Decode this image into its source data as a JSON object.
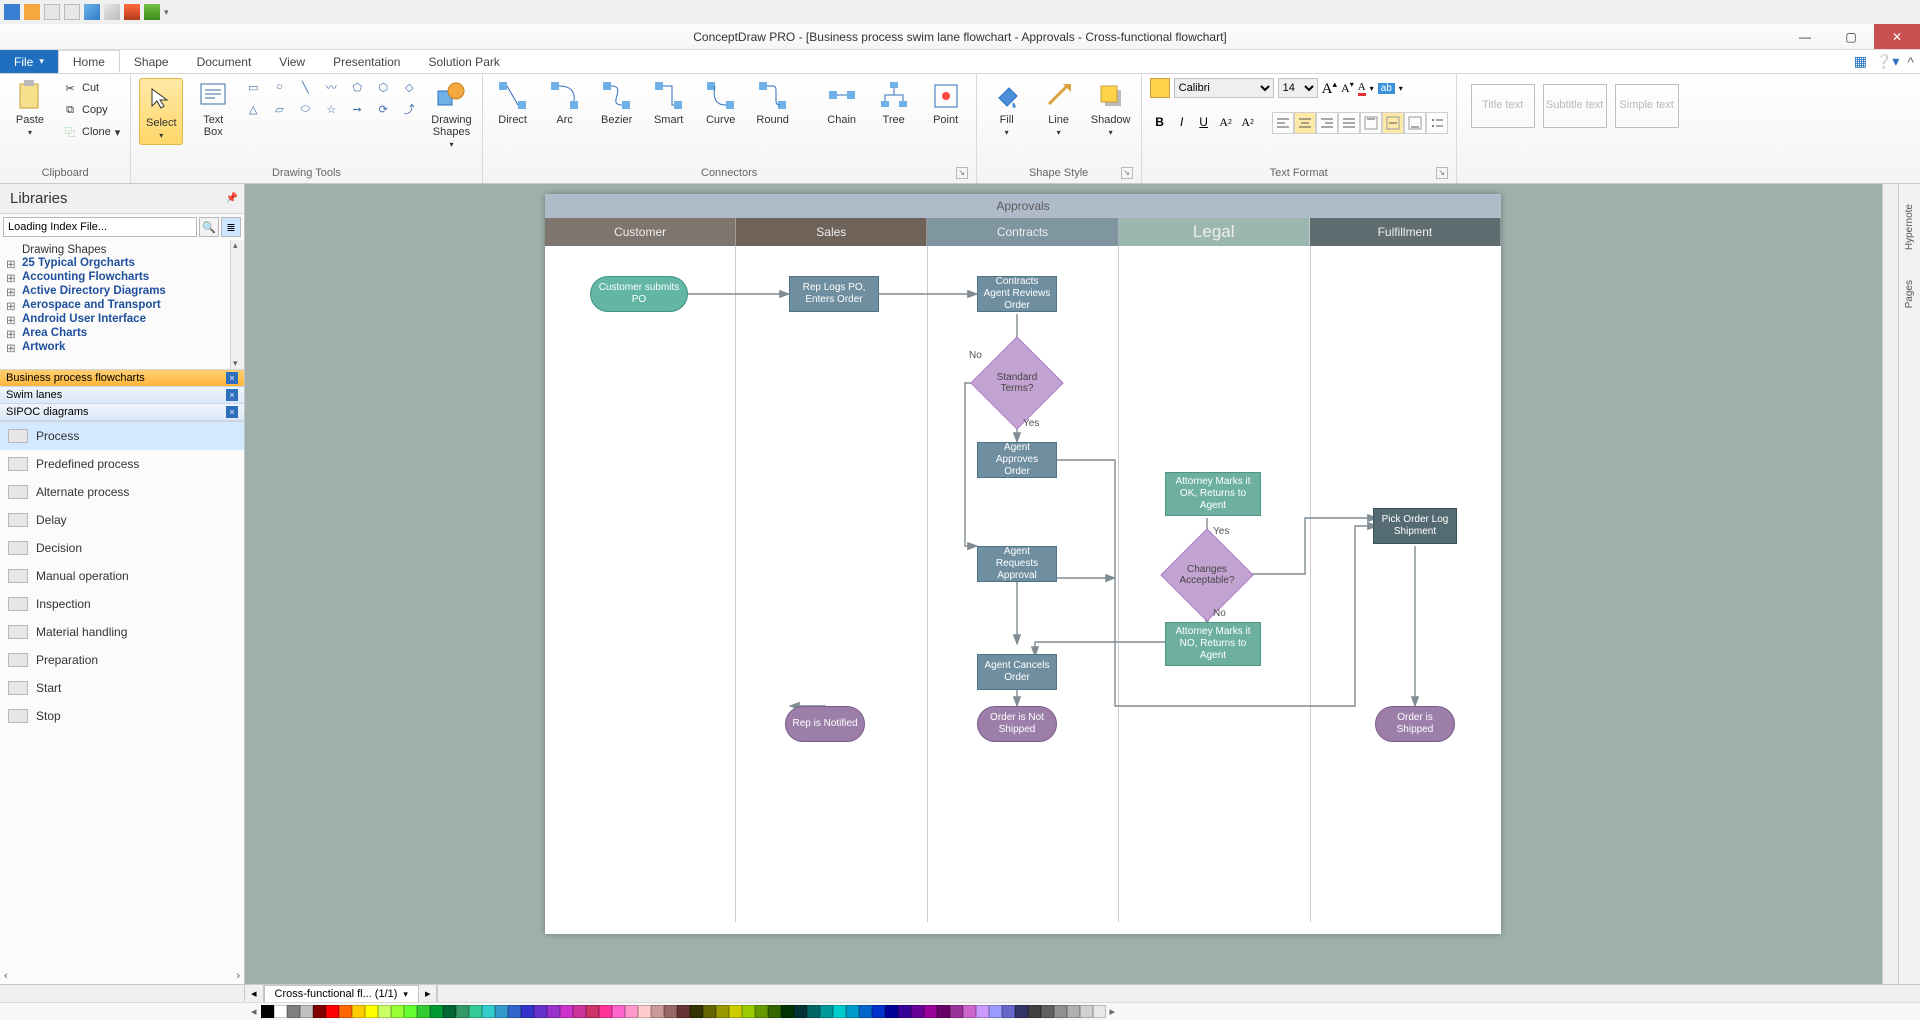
{
  "app_title": "ConceptDraw PRO - [Business process swim lane flowchart - Approvals - Cross-functional flowchart]",
  "tabs": {
    "file": "File",
    "items": [
      "Home",
      "Shape",
      "Document",
      "View",
      "Presentation",
      "Solution Park"
    ],
    "active": "Home"
  },
  "ribbon": {
    "clipboard": {
      "label": "Clipboard",
      "paste": "Paste",
      "cut": "Cut",
      "copy": "Copy",
      "clone": "Clone"
    },
    "select": "Select",
    "textbox": "Text\nBox",
    "drawing_tools": "Drawing Tools",
    "drawing_shapes": "Drawing\nShapes",
    "connectors": {
      "label": "Connectors",
      "items": [
        "Direct",
        "Arc",
        "Bezier",
        "Smart",
        "Curve",
        "Round"
      ],
      "chain": "Chain",
      "tree": "Tree",
      "point": "Point"
    },
    "shapestyle": {
      "label": "Shape Style",
      "fill": "Fill",
      "line": "Line",
      "shadow": "Shadow"
    },
    "textformat": {
      "label": "Text Format",
      "font": "Calibri",
      "size": "14"
    },
    "placeholders": [
      "Title text",
      "Subtitle text",
      "Simple text"
    ]
  },
  "libraries": {
    "header": "Libraries",
    "search_value": "Loading Index File...",
    "tree_top": "Drawing Shapes",
    "tree": [
      "25 Typical Orgcharts",
      "Accounting Flowcharts",
      "Active Directory Diagrams",
      "Aerospace and Transport",
      "Android User Interface",
      "Area Charts",
      "Artwork"
    ],
    "stencils": [
      {
        "name": "Business process flowcharts",
        "active": true
      },
      {
        "name": "Swim lanes",
        "active": false
      },
      {
        "name": "SIPOC diagrams",
        "active": false
      }
    ],
    "shapes": [
      "Process",
      "Predefined process",
      "Alternate process",
      "Delay",
      "Decision",
      "Manual operation",
      "Inspection",
      "Material handling",
      "Preparation",
      "Start",
      "Stop"
    ],
    "selected_shape": "Process"
  },
  "doc_tab": "Cross-functional fl...  (1/1)",
  "flowchart": {
    "title": "Approvals",
    "title_bar_bg": "#b0bbc9",
    "lanes": [
      {
        "name": "Customer",
        "bg": "#7f756f"
      },
      {
        "name": "Sales",
        "bg": "#6e6259"
      },
      {
        "name": "Contracts",
        "bg": "#7f95a0"
      },
      {
        "name": "Legal",
        "bg": "#9cb7af",
        "fontsize": "17px"
      },
      {
        "name": "Fulfillment",
        "bg": "#5f6d70"
      }
    ],
    "colors": {
      "teal_term": "#63b6a4",
      "teal_term_border": "#3c9582",
      "proc_blue": "#6f8fa0",
      "proc_blue_border": "#4d7589",
      "proc_dark": "#546b73",
      "proc_dark_border": "#3a5159",
      "proc_teal": "#6eb0a0",
      "proc_teal_border": "#4e9585",
      "decision": "#c3a3d1",
      "decision_border": "#a87cc0",
      "end": "#9b7fa9",
      "end_border": "#7a5b8e",
      "edge": "#7f8c93"
    },
    "nodes": {
      "n1": {
        "text": "Customer submits PO"
      },
      "n2": {
        "text": "Rep Logs PO, Enters Order"
      },
      "n3": {
        "text": "Contracts Agent Reviews Order"
      },
      "d1": {
        "text": "Standard Terms?"
      },
      "n4": {
        "text": "Agent Approves Order"
      },
      "n5": {
        "text": "Agent Requests Approval"
      },
      "n6": {
        "text": "Attorney Marks it OK, Returns to Agent"
      },
      "d2": {
        "text": "Changes Acceptable?"
      },
      "n7": {
        "text": "Attorney Marks it NO, Returns to Agent"
      },
      "n8": {
        "text": "Agent Cancels Order"
      },
      "n9": {
        "text": "Pick Order Log Shipment"
      },
      "e1": {
        "text": "Rep is Notified"
      },
      "e2": {
        "text": "Order is Not Shipped"
      },
      "e3": {
        "text": "Order is Shipped"
      }
    },
    "labels": {
      "no": "No",
      "yes": "Yes",
      "yes2": "Yes",
      "no2": "No"
    }
  },
  "palette": [
    "#000000",
    "#ffffff",
    "#808080",
    "#c0c0c0",
    "#800000",
    "#ff0000",
    "#ff6600",
    "#ffcc00",
    "#ffff00",
    "#ccff66",
    "#99ff33",
    "#66ff33",
    "#33cc33",
    "#009933",
    "#006633",
    "#339966",
    "#33cc99",
    "#33cccc",
    "#3399cc",
    "#3366cc",
    "#3333cc",
    "#6633cc",
    "#9933cc",
    "#cc33cc",
    "#cc3399",
    "#cc3366",
    "#ff3399",
    "#ff66cc",
    "#ff99cc",
    "#ffcccc",
    "#cc9999",
    "#996666",
    "#663333",
    "#333300",
    "#666600",
    "#999900",
    "#cccc00",
    "#99cc00",
    "#669900",
    "#336600",
    "#003300",
    "#003333",
    "#006666",
    "#009999",
    "#00cccc",
    "#0099cc",
    "#0066cc",
    "#0033cc",
    "#000099",
    "#330099",
    "#660099",
    "#990099",
    "#660066",
    "#993399",
    "#cc66cc",
    "#cc99ff",
    "#9999ff",
    "#6666cc",
    "#333366",
    "#404040",
    "#606060",
    "#909090",
    "#b0b0b0",
    "#d0d0d0",
    "#e8e8e8"
  ]
}
